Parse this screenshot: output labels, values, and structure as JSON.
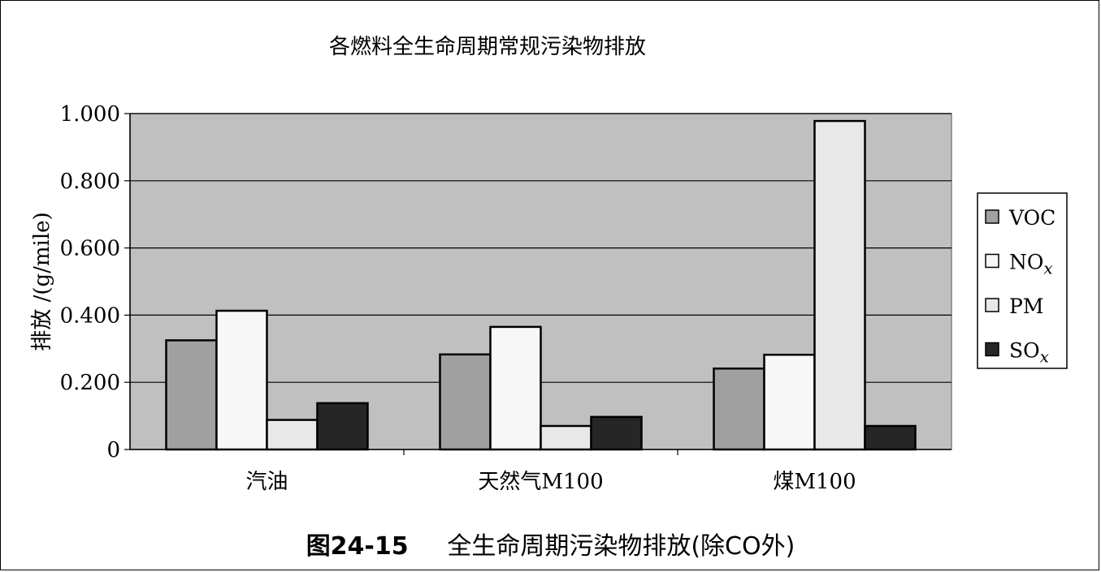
{
  "chart_data": {
    "type": "bar",
    "title": "各燃料全生命周期常规污染物排放",
    "xlabel": "",
    "ylabel": "排放 /(g/mile)",
    "categories": [
      "汽油",
      "天然气M100",
      "煤M100"
    ],
    "ylim": [
      0,
      1.0
    ],
    "yticks": [
      0,
      0.2,
      0.4,
      0.6,
      0.8,
      1.0
    ],
    "ytick_labels": [
      "0",
      "0.200",
      "0.400",
      "0.600",
      "0.800",
      "1.000"
    ],
    "grid": true,
    "legend_position": "right",
    "series": [
      {
        "name": "VOC",
        "base": "VOC",
        "sub": "",
        "color": "#a0a0a0",
        "values": [
          0.325,
          0.283,
          0.241
        ]
      },
      {
        "name": "NOx",
        "base": "NO",
        "sub": "x",
        "color": "#f7f7f7",
        "values": [
          0.413,
          0.365,
          0.282
        ]
      },
      {
        "name": "PM",
        "base": "PM",
        "sub": "",
        "color": "#e8e8e8",
        "values": [
          0.088,
          0.07,
          0.978
        ]
      },
      {
        "name": "SOx",
        "base": "SO",
        "sub": "x",
        "color": "#262626",
        "values": [
          0.138,
          0.097,
          0.07
        ]
      }
    ],
    "plot_background": "#c0c0c0"
  },
  "caption": {
    "number": "图24-15",
    "text": "全生命周期污染物排放(除CO外)"
  }
}
